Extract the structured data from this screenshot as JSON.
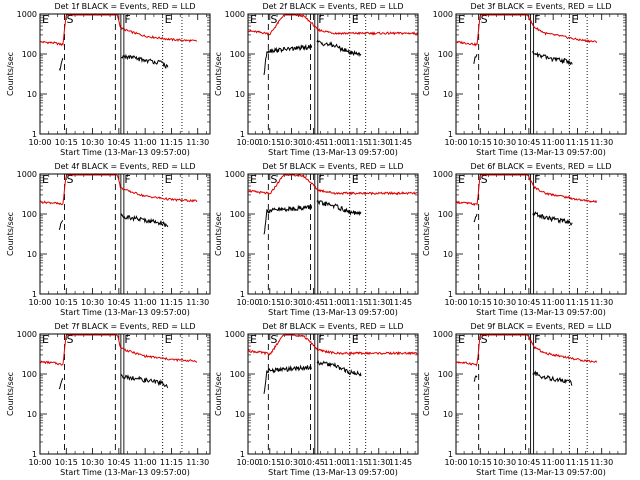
{
  "chart_data": {
    "type": "line",
    "panels": [
      {
        "title": "Det 1f BLACK = Events, RED = LLD",
        "variant": "a"
      },
      {
        "title": "Det 2f BLACK = Events, RED = LLD",
        "variant": "b"
      },
      {
        "title": "Det 3f BLACK = Events, RED = LLD",
        "variant": "c"
      },
      {
        "title": "Det 4f BLACK = Events, RED = LLD",
        "variant": "a"
      },
      {
        "title": "Det 5f BLACK = Events, RED = LLD",
        "variant": "b"
      },
      {
        "title": "Det 6f BLACK = Events, RED = LLD",
        "variant": "c"
      },
      {
        "title": "Det 7f BLACK = Events, RED = LLD",
        "variant": "a"
      },
      {
        "title": "Det 8f BLACK = Events, RED = LLD",
        "variant": "b"
      },
      {
        "title": "Det 9f BLACK = Events, RED = LLD",
        "variant": "c"
      }
    ],
    "xlabel": "Start Time (13-Mar-13 09:57:00)",
    "ylabel": "Counts/sec",
    "yscale": "log",
    "ylim": [
      1,
      1000
    ],
    "yticks": [
      1,
      10,
      100,
      1000
    ],
    "yticklabels": [
      "1",
      "10",
      "100",
      "1000"
    ],
    "series_colors": {
      "events": "#000000",
      "lld": "#dd0000"
    },
    "markers": [
      {
        "label": "E",
        "time": "10:00",
        "style": "dotted"
      },
      {
        "label": "S",
        "time": "10:14",
        "style": "dashed"
      },
      {
        "label": "",
        "time": "10:43",
        "style": "dashed"
      },
      {
        "label": "F",
        "time": "10:47",
        "style": "solid-double"
      },
      {
        "label": "E",
        "time": "11:10",
        "style": "dotted"
      },
      {
        "label": "",
        "time": "11:21",
        "style": "dotted"
      }
    ],
    "variants": {
      "a": {
        "xlim": [
          "10:00",
          "11:37"
        ],
        "xticks": [
          "10:00",
          "10:15",
          "10:30",
          "10:45",
          "11:00",
          "11:15",
          "11:30"
        ],
        "lld": {
          "t": [
            "10:00",
            "10:08",
            "10:13",
            "10:15",
            "10:30",
            "10:44",
            "10:46",
            "10:50",
            "11:00",
            "11:15",
            "11:30"
          ],
          "v": [
            200,
            190,
            170,
            1000,
            1000,
            1000,
            450,
            380,
            280,
            230,
            210
          ]
        },
        "events": {
          "t": [
            "10:11",
            "10:12",
            "10:13",
            "10:46",
            "10:50",
            "11:00",
            "11:10",
            "11:13"
          ],
          "v": [
            40,
            55,
            70,
            90,
            85,
            70,
            60,
            45
          ]
        }
      },
      "b": {
        "xlim": [
          "10:00",
          "11:57"
        ],
        "xticks": [
          "10:00",
          "10:15",
          "10:30",
          "10:45",
          "11:00",
          "11:15",
          "11:30",
          "11:45"
        ],
        "lld": {
          "t": [
            "10:00",
            "10:13",
            "10:15",
            "10:25",
            "10:38",
            "10:44",
            "10:48",
            "11:00",
            "11:20",
            "11:57"
          ],
          "v": [
            380,
            330,
            310,
            1000,
            900,
            580,
            400,
            330,
            330,
            330
          ]
        },
        "events": {
          "t": [
            "10:11",
            "10:13",
            "10:44",
            "10:47",
            "11:00",
            "11:10",
            "11:18"
          ],
          "v": [
            30,
            120,
            150,
            200,
            160,
            110,
            100
          ]
        }
      },
      "c": {
        "xlim": [
          "10:00",
          "11:45"
        ],
        "xticks": [
          "10:00",
          "10:15",
          "10:30",
          "10:45",
          "11:00",
          "11:15",
          "11:30"
        ],
        "lld": {
          "t": [
            "10:00",
            "10:10",
            "10:13",
            "10:15",
            "10:30",
            "10:44",
            "10:48",
            "10:55",
            "11:05",
            "11:15",
            "11:27"
          ],
          "v": [
            200,
            180,
            170,
            1000,
            1000,
            1000,
            480,
            330,
            280,
            230,
            200
          ]
        },
        "events": {
          "t": [
            "10:11",
            "10:12",
            "10:13",
            "10:47",
            "10:52",
            "11:00",
            "11:10",
            "11:12"
          ],
          "v": [
            60,
            80,
            100,
            110,
            90,
            75,
            65,
            55
          ]
        }
      }
    }
  }
}
